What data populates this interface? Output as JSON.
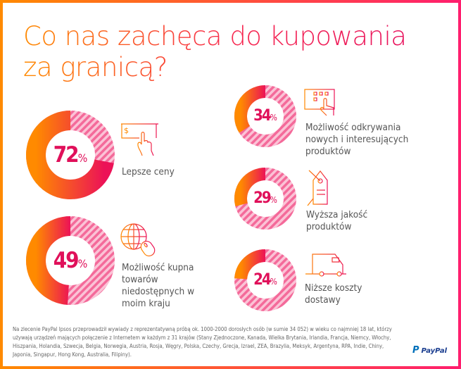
{
  "title": {
    "line1": "Co nas zachęca do kupowania",
    "line2": "za granicą?"
  },
  "colors": {
    "orange": "#ff8a00",
    "pink": "#e8115c",
    "stripe": "#f46a9a"
  },
  "items": [
    {
      "value": 72,
      "pct_sign": "%",
      "label_lines": [
        "Lepsze ceny"
      ],
      "icon": "hand-money-icon"
    },
    {
      "value": 49,
      "pct_sign": "%",
      "label_lines": [
        "Możliwość kupna",
        "towarów",
        "niedostępnych w",
        "moim kraju"
      ],
      "icon": "globe-mouse-icon"
    },
    {
      "value": 34,
      "pct_sign": "%",
      "label_lines": [
        "Możliwość odkrywania",
        "nowych i interesujących",
        "produktów"
      ],
      "icon": "touch-screen-icon"
    },
    {
      "value": 29,
      "pct_sign": "%",
      "label_lines": [
        "Wyższa jakość",
        "produktów"
      ],
      "icon": "price-tag-icon"
    },
    {
      "value": 24,
      "pct_sign": "%",
      "label_lines": [
        "Niższe koszty",
        "dostawy"
      ],
      "icon": "delivery-van-icon"
    }
  ],
  "footnote": "Na zlecenie PayPal Ipsos przeprowadził wywiady z reprezentatywną próbą ok. 1000-2000 dorosłych osób (w sumie 34 052) w wieku co najmniej 18 lat, którzy używają urządzeń mających połączenie z Internetem w każdym z 31 krajów (Stany Zjednoczone, Kanada, Wielka Brytania, Irlandia, Francja, Niemcy, Włochy, Hiszpania, Holandia, Szwecja, Belgia, Norwegia, Austria, Rosja, Węgry, Polska, Czechy, Grecja, Izrael, ZEA, Brazylia, Meksyk, Argentyna, RPA, Indie, Chiny, Japonia, Singapur, Hong Kong, Australia, Filipiny).",
  "logo": {
    "text": "PayPal"
  }
}
